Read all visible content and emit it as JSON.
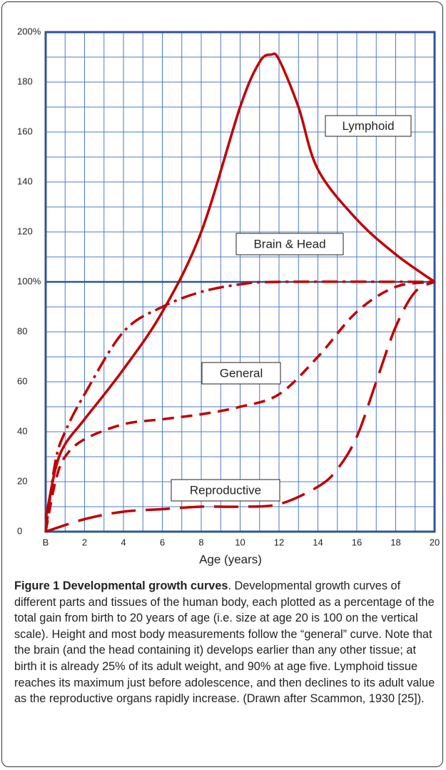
{
  "chart_data": {
    "type": "line",
    "xlabel": "Age (years)",
    "xlim": [
      0,
      20
    ],
    "xticks": [
      {
        "value": 0,
        "label": "B"
      },
      2,
      4,
      6,
      8,
      10,
      12,
      14,
      16,
      18,
      20
    ],
    "ylim": [
      0,
      200
    ],
    "yticks": [
      0,
      20,
      40,
      60,
      80,
      {
        "value": 100,
        "label": "100%"
      },
      120,
      140,
      160,
      180,
      {
        "value": 200,
        "label": "200%"
      }
    ],
    "grid": true,
    "series": [
      {
        "name": "Lymphoid",
        "color": "#c00000",
        "dash": "solid",
        "x": [
          0,
          0.5,
          1,
          2,
          4,
          6,
          8,
          10,
          11,
          11.6,
          12,
          13,
          14,
          16,
          18,
          20
        ],
        "values": [
          5,
          25,
          35,
          45,
          65,
          88,
          120,
          170,
          188,
          191,
          189,
          170,
          145,
          125,
          111,
          100
        ]
      },
      {
        "name": "Brain & Head",
        "color": "#c00000",
        "dash": "dashdot",
        "x": [
          0,
          0.5,
          1,
          2,
          4,
          6,
          8,
          10,
          12,
          20
        ],
        "values": [
          0,
          28,
          40,
          55,
          80,
          90,
          96,
          99,
          100,
          100
        ]
      },
      {
        "name": "General",
        "color": "#c00000",
        "dash": "dashed",
        "x": [
          0,
          0.5,
          1,
          2,
          4,
          6,
          8,
          10,
          12,
          14,
          16,
          18,
          20
        ],
        "values": [
          0,
          20,
          30,
          37,
          43,
          45,
          47,
          50,
          55,
          70,
          88,
          98,
          100
        ]
      },
      {
        "name": "Reproductive",
        "color": "#c00000",
        "dash": "longdash",
        "x": [
          0,
          2,
          4,
          6,
          8,
          10,
          12,
          14,
          15,
          16,
          17,
          18,
          19,
          20
        ],
        "values": [
          0,
          5,
          8,
          9,
          10,
          10,
          11,
          18,
          25,
          38,
          60,
          82,
          96,
          100
        ]
      }
    ]
  },
  "caption": {
    "label": "Figure 1 Developmental growth curves",
    "text": ". Developmental growth curves of different parts and tissues of the human body, each plotted as a percentage of the total gain from birth to 20 years of age (i.e. size at age 20 is 100 on the vertical scale). Height and most body measurements follow the “general” curve. Note that the brain (and the head containing it) develops earlier than any other tissue; at birth it is already 25% of its adult weight, and 90% at age five. Lymphoid tissue reaches its maximum just before adolescence, and then declines to its adult value as the reproductive organs rapidly increase. (Drawn after Scammon, 1930 [25])."
  }
}
